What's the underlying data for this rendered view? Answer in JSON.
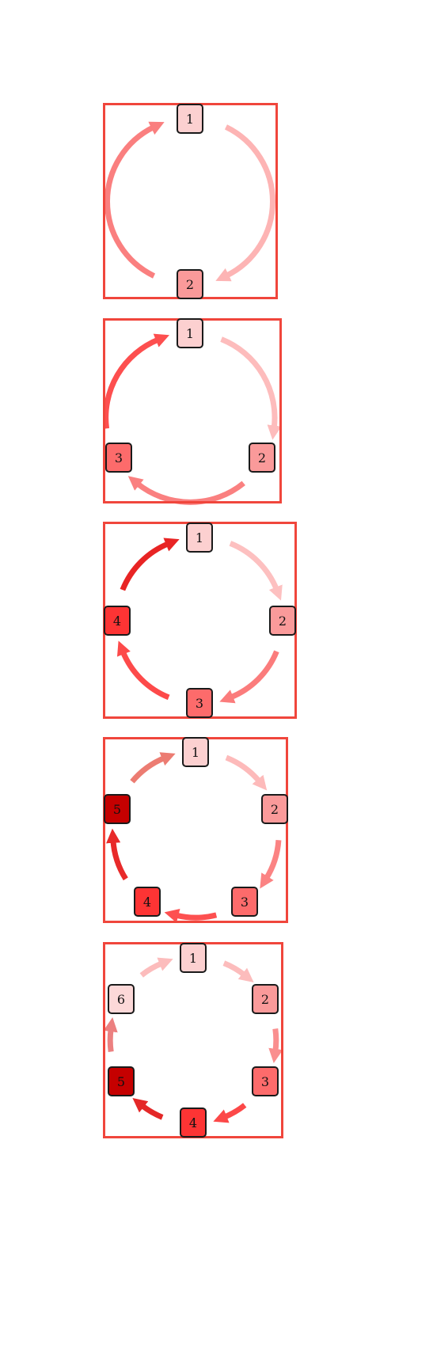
{
  "colors": {
    "frame": "#f0463c",
    "node_1": "#fcd0d0",
    "node_2": "#fa9a9a",
    "node_3": "#fd6b6b",
    "node_4": "#fd3434",
    "node_5": "#c50000",
    "node_6": "#fcd8d8"
  },
  "diagrams": [
    {
      "nodes": [
        "1",
        "2"
      ],
      "arrows": [
        {
          "from": "1",
          "to": "2",
          "color": "#fdb4b4"
        },
        {
          "from": "2",
          "to": "1",
          "color": "#fa7f7f"
        }
      ]
    },
    {
      "nodes": [
        "1",
        "2",
        "3"
      ],
      "arrows": [
        {
          "from": "1",
          "to": "2",
          "color": "#fdbcbc"
        },
        {
          "from": "2",
          "to": "3",
          "color": "#fa8080"
        },
        {
          "from": "3",
          "to": "1",
          "color": "#fd4f4f"
        }
      ]
    },
    {
      "nodes": [
        "1",
        "2",
        "3",
        "4"
      ],
      "arrows": [
        {
          "from": "1",
          "to": "2",
          "color": "#fdc0c0"
        },
        {
          "from": "2",
          "to": "3",
          "color": "#fb7c7c"
        },
        {
          "from": "3",
          "to": "4",
          "color": "#fd4a4a"
        },
        {
          "from": "4",
          "to": "1",
          "color": "#e82424"
        }
      ]
    },
    {
      "nodes": [
        "1",
        "2",
        "3",
        "4",
        "5"
      ],
      "arrows": [
        {
          "from": "1",
          "to": "2",
          "color": "#fdbaba"
        },
        {
          "from": "2",
          "to": "3",
          "color": "#fb8383"
        },
        {
          "from": "3",
          "to": "4",
          "color": "#fd5050"
        },
        {
          "from": "4",
          "to": "5",
          "color": "#e82a2a"
        },
        {
          "from": "5",
          "to": "1",
          "color": "#ec7c72"
        }
      ]
    },
    {
      "nodes": [
        "1",
        "2",
        "3",
        "4",
        "5",
        "6"
      ],
      "arrows": [
        {
          "from": "1",
          "to": "2",
          "color": "#fcbcbc"
        },
        {
          "from": "2",
          "to": "3",
          "color": "#fa8f8f"
        },
        {
          "from": "3",
          "to": "4",
          "color": "#fc4848"
        },
        {
          "from": "4",
          "to": "5",
          "color": "#e42828"
        },
        {
          "from": "5",
          "to": "6",
          "color": "#ec8080"
        },
        {
          "from": "6",
          "to": "1",
          "color": "#fcbcbc"
        }
      ]
    }
  ]
}
